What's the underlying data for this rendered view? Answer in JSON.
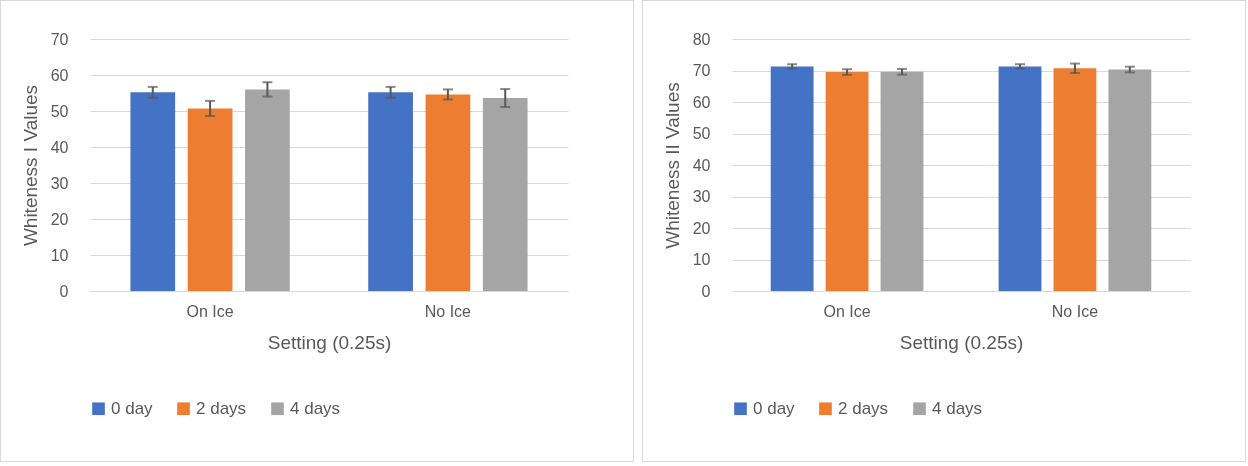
{
  "chart_data": [
    {
      "type": "bar",
      "categories": [
        "On Ice",
        "No Ice"
      ],
      "xlabel": "Setting (0.25s)",
      "ylabel": "Whiteness I Values",
      "ylim": [
        0,
        70
      ],
      "yticks": [
        0,
        10,
        20,
        30,
        40,
        50,
        60,
        70
      ],
      "grid": "y",
      "legend": "bottom",
      "series": [
        {
          "name": "0 day",
          "color": "#4472c4",
          "values": [
            55.2,
            55.2
          ],
          "errors": [
            1.5,
            1.5
          ]
        },
        {
          "name": "2 days",
          "color": "#ed7d31",
          "values": [
            50.7,
            54.6
          ],
          "errors": [
            2.1,
            1.4
          ]
        },
        {
          "name": "4 days",
          "color": "#a5a5a5",
          "values": [
            56.0,
            53.6
          ],
          "errors": [
            2.0,
            2.5
          ]
        }
      ]
    },
    {
      "type": "bar",
      "categories": [
        "On Ice",
        "No Ice"
      ],
      "xlabel": "Setting (0.25s)",
      "ylabel": "Whiteness II Values",
      "ylim": [
        0,
        80
      ],
      "yticks": [
        0,
        10,
        20,
        30,
        40,
        50,
        60,
        70,
        80
      ],
      "grid": "y",
      "legend": "bottom",
      "series": [
        {
          "name": "0 day",
          "color": "#4472c4",
          "values": [
            71.3,
            71.3
          ],
          "errors": [
            0.7,
            0.7
          ]
        },
        {
          "name": "2 days",
          "color": "#ed7d31",
          "values": [
            69.5,
            70.7
          ],
          "errors": [
            0.9,
            1.5
          ]
        },
        {
          "name": "4 days",
          "color": "#a5a5a5",
          "values": [
            69.6,
            70.3
          ],
          "errors": [
            0.9,
            0.9
          ]
        }
      ]
    }
  ]
}
